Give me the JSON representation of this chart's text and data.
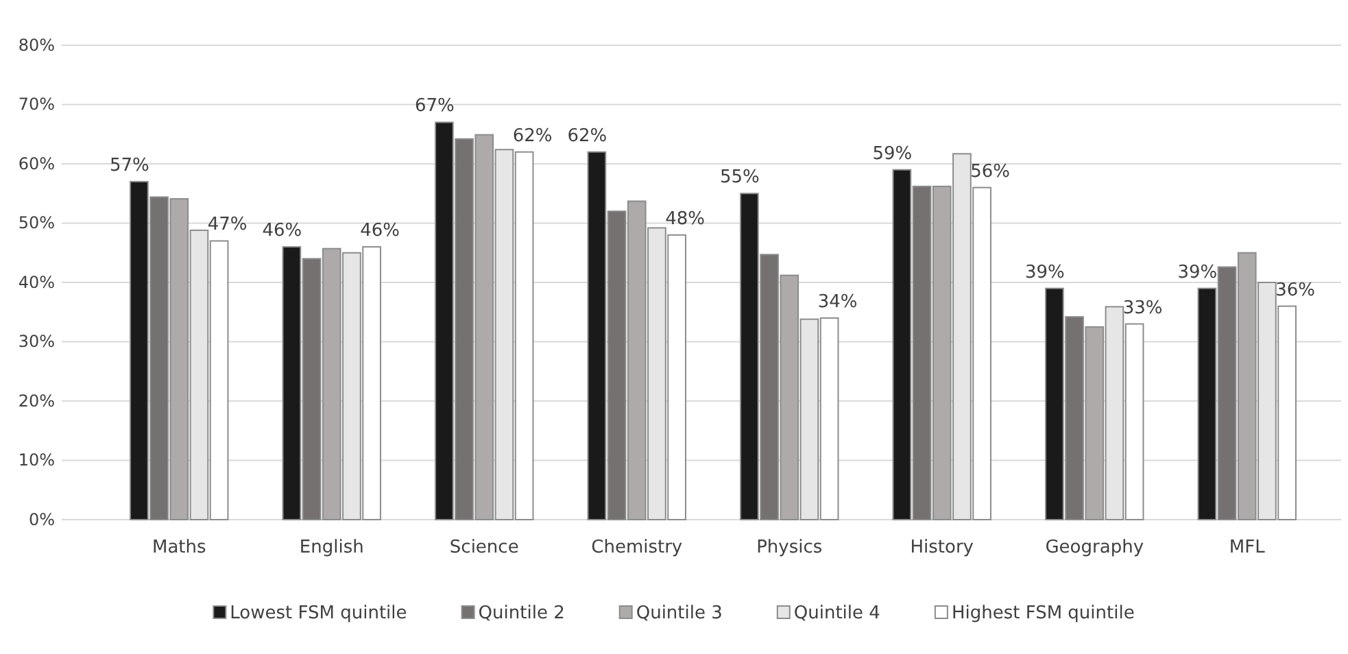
{
  "chart_data": {
    "type": "bar",
    "categories": [
      "Maths",
      "English",
      "Science",
      "Chemistry",
      "Physics",
      "History",
      "Geography",
      "MFL"
    ],
    "series": [
      {
        "name": "Lowest FSM quintile",
        "color": "#1a1a1a",
        "values": [
          57,
          46,
          67,
          62,
          55,
          59,
          39,
          39
        ],
        "value_labels": [
          "57%",
          "46%",
          "67%",
          "62%",
          "55%",
          "59%",
          "39%",
          "39%"
        ]
      },
      {
        "name": "Quintile 2",
        "color": "#767171",
        "values": [
          54.4,
          44,
          64.2,
          52,
          44.7,
          56.2,
          34.2,
          42.6
        ]
      },
      {
        "name": "Quintile 3",
        "color": "#aeaaaa",
        "values": [
          54.1,
          45.7,
          64.9,
          53.7,
          41.2,
          56.2,
          32.5,
          45
        ]
      },
      {
        "name": "Quintile 4",
        "color": "#e7e6e6",
        "values": [
          48.8,
          45,
          62.4,
          49.2,
          33.8,
          61.7,
          35.9,
          40
        ]
      },
      {
        "name": "Highest FSM quintile",
        "color": "#ffffff",
        "values": [
          47,
          46,
          62,
          48,
          34,
          56,
          33,
          36
        ],
        "value_labels": [
          "47%",
          "46%",
          "62%",
          "48%",
          "34%",
          "56%",
          "33%",
          "36%"
        ]
      }
    ],
    "ylim": [
      0,
      80
    ],
    "yticks": [
      {
        "value": 0,
        "label": "0%"
      },
      {
        "value": 10,
        "label": "10%"
      },
      {
        "value": 20,
        "label": "20%"
      },
      {
        "value": 30,
        "label": "30%"
      },
      {
        "value": 40,
        "label": "40%"
      },
      {
        "value": 50,
        "label": "50%"
      },
      {
        "value": 60,
        "label": "60%"
      },
      {
        "value": 70,
        "label": "70%"
      },
      {
        "value": 80,
        "label": "80%"
      }
    ],
    "grid": "y",
    "legend": "bottom"
  }
}
